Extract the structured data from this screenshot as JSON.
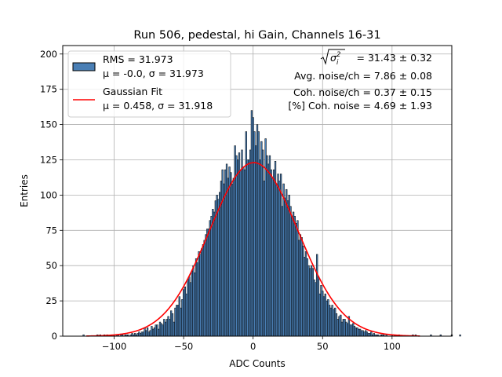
{
  "chart_data": {
    "type": "bar",
    "title": "Run 506, pedestal, hi Gain, Channels 16-31",
    "xlabel": "ADC Counts",
    "ylabel": "Entries",
    "xlim": [
      -137,
      143
    ],
    "ylim": [
      0,
      206
    ],
    "xticks": [
      -100,
      -50,
      0,
      50,
      100
    ],
    "xtick_labels": [
      "−100",
      "−50",
      "0",
      "50",
      "100"
    ],
    "yticks": [
      0,
      25,
      50,
      75,
      100,
      125,
      150,
      175,
      200
    ],
    "ytick_labels": [
      "0",
      "25",
      "50",
      "75",
      "100",
      "125",
      "150",
      "175",
      "200"
    ],
    "grid": true,
    "legend_position": "top-left",
    "histogram": {
      "name": "RMS = 31.973",
      "stats_label": "μ = -0.0, σ = 31.973",
      "bin_width": 1,
      "x_start": -122,
      "values": [
        1,
        0,
        0,
        0,
        0,
        0,
        0,
        0,
        0,
        0,
        1,
        0,
        1,
        0,
        0,
        1,
        0,
        1,
        0,
        0,
        1,
        0,
        1,
        0,
        1,
        1,
        0,
        1,
        1,
        0,
        1,
        1,
        1,
        0,
        1,
        2,
        1,
        2,
        1,
        2,
        3,
        2,
        3,
        3,
        6,
        4,
        6,
        3,
        4,
        7,
        5,
        6,
        8,
        8,
        5,
        10,
        9,
        8,
        12,
        10,
        12,
        14,
        12,
        18,
        16,
        10,
        20,
        22,
        22,
        28,
        20,
        26,
        33,
        35,
        30,
        40,
        42,
        38,
        46,
        50,
        45,
        55,
        52,
        60,
        58,
        62,
        65,
        68,
        72,
        76,
        76,
        82,
        85,
        90,
        88,
        96,
        100,
        97,
        102,
        110,
        118,
        108,
        118,
        122,
        112,
        120,
        116,
        108,
        112,
        135,
        128,
        125,
        130,
        118,
        132,
        120,
        118,
        145,
        125,
        125,
        132,
        160,
        155,
        145,
        135,
        150,
        145,
        125,
        138,
        132,
        110,
        140,
        128,
        122,
        128,
        118,
        112,
        118,
        124,
        108,
        115,
        110,
        115,
        92,
        108,
        98,
        104,
        96,
        100,
        92,
        84,
        88,
        85,
        80,
        82,
        68,
        72,
        70,
        64,
        56,
        60,
        55,
        50,
        48,
        50,
        48,
        40,
        38,
        58,
        42,
        30,
        36,
        32,
        28,
        30,
        25,
        26,
        22,
        20,
        22,
        19,
        20,
        16,
        12,
        14,
        15,
        10,
        12,
        12,
        10,
        9,
        14,
        8,
        8,
        9,
        7,
        6,
        6,
        5,
        5,
        4,
        4,
        3,
        4,
        3,
        2,
        2,
        3,
        1,
        2,
        1,
        1,
        1,
        0,
        1,
        1,
        1,
        0,
        1,
        0,
        0,
        0,
        1,
        0,
        1,
        0,
        0,
        1,
        0,
        0,
        0,
        0,
        0,
        0,
        0,
        0,
        0,
        1,
        0,
        1,
        0,
        0,
        0,
        0,
        0,
        0,
        0,
        0,
        0,
        0,
        1,
        0,
        0,
        0,
        0,
        0,
        0,
        1,
        0,
        0,
        0,
        0,
        0,
        0,
        0,
        1,
        0,
        0,
        0,
        0,
        0,
        1
      ]
    },
    "fit": {
      "name": "Gaussian Fit",
      "stats_label": "μ = 0.458, σ = 31.918",
      "mu": 0.458,
      "sigma": 31.918,
      "amplitude": 123,
      "x_range": [
        -120,
        120
      ],
      "color": "#ff0000"
    },
    "colors": {
      "bar_fill": "#4a7fb5",
      "bar_edge": "#000000",
      "grid": "#b0b0b0"
    },
    "annotations": {
      "sqrt_value": " = 31.43 ± 0.32",
      "avg_noise": "Avg. noise/ch = 7.86 ± 0.08",
      "coh_noise": "Coh. noise/ch = 0.37 ± 0.15",
      "coh_pct": "[%] Coh. noise = 4.69 ± 1.93"
    }
  }
}
